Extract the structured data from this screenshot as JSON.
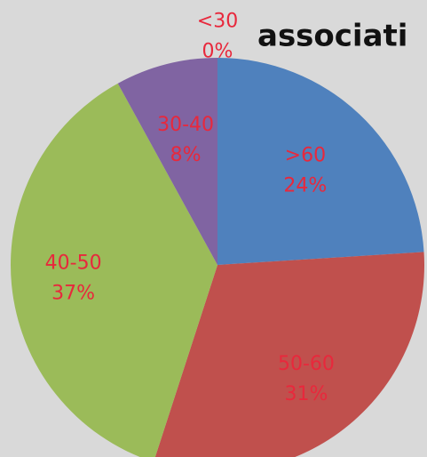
{
  "chart_data": {
    "type": "pie",
    "title": "associati",
    "categories": [
      ">60",
      "50-60",
      "40-50",
      "30-40",
      "<30"
    ],
    "values": [
      24,
      31,
      37,
      8,
      0
    ],
    "value_labels": [
      "24%",
      "31%",
      "37%",
      "8%",
      "0%"
    ],
    "colors": [
      "#4f81bd",
      "#c0504d",
      "#9bbb59",
      "#8064a2",
      "#4bacc6"
    ]
  }
}
